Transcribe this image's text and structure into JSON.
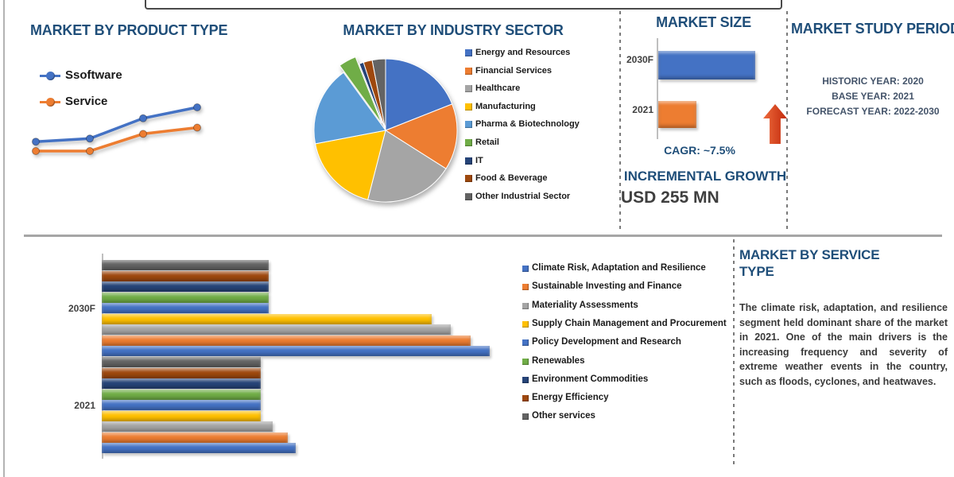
{
  "chart_data": [
    {
      "id": "product_type_line",
      "type": "line",
      "title": "MARKET BY PRODUCT TYPE",
      "x": [
        1,
        2,
        3,
        4
      ],
      "axes_visible": false,
      "legend_position": "top-left",
      "series": [
        {
          "name": "Ssoftware",
          "color": "#4472C4",
          "values": [
            30,
            32,
            45,
            52
          ]
        },
        {
          "name": "Service",
          "color": "#ED7D31",
          "values": [
            24,
            24,
            35,
            39
          ]
        }
      ]
    },
    {
      "id": "industry_sector_pie",
      "type": "pie",
      "title": "MARKET BY INDUSTRY SECTOR",
      "legend_position": "right",
      "labels": [
        "Energy and Resources",
        "Financial Services",
        "Healthcare",
        "Manufacturing",
        "Pharma & Biotechnology",
        "Retail",
        "IT",
        "Food & Beverage",
        "Other Industrial Sector"
      ],
      "values_pct": [
        19,
        15,
        20,
        18,
        18,
        4,
        1,
        2,
        3
      ],
      "colors": [
        "#4472C4",
        "#ED7D31",
        "#A5A5A5",
        "#FFC000",
        "#5B9BD5",
        "#70AD47",
        "#264478",
        "#9E480E",
        "#636363"
      ],
      "exploded_index": 5
    },
    {
      "id": "market_size_bar",
      "type": "bar",
      "orientation": "horizontal",
      "title": "MARKET SIZE",
      "categories": [
        "2030F",
        "2021"
      ],
      "values_relative": [
        100,
        39
      ],
      "colors": [
        "#4472C4",
        "#ED7D31"
      ],
      "annotations": [
        "CAGR: ~7.5%",
        "INCREMENTAL GROWTH",
        "USD 255 MN"
      ],
      "arrow_icon_color": "#C83A17"
    },
    {
      "id": "service_type_bar",
      "type": "bar",
      "orientation": "horizontal",
      "categories": [
        "2030F",
        "2021"
      ],
      "xlim": [
        0,
        107
      ],
      "legend_position": "right",
      "series": [
        {
          "name": "Other services",
          "color": "#636363",
          "values": [
            43,
            41
          ]
        },
        {
          "name": "Energy Efficiency",
          "color": "#9E480E",
          "values": [
            43,
            41
          ]
        },
        {
          "name": "Environment Commodities",
          "color": "#264478",
          "values": [
            43,
            41
          ]
        },
        {
          "name": "Renewables",
          "color": "#70AD47",
          "values": [
            43,
            41
          ]
        },
        {
          "name": "Policy Development and Research",
          "color": "#4472C4",
          "values": [
            43,
            41
          ]
        },
        {
          "name": "Supply Chain Management and Procurement",
          "color": "#FFC000",
          "values": [
            85,
            41
          ]
        },
        {
          "name": "Materiality Assessments",
          "color": "#A5A5A5",
          "values": [
            90,
            44
          ]
        },
        {
          "name": "Sustainable Investing and Finance",
          "color": "#ED7D31",
          "values": [
            95,
            48
          ]
        },
        {
          "name": "Climate Risk, Adaptation and Resilience",
          "color": "#4472C4",
          "values": [
            100,
            50
          ]
        }
      ]
    }
  ],
  "study_period": {
    "title": "MARKET STUDY PERIOD",
    "lines": [
      "HISTORIC YEAR: 2020",
      "BASE YEAR: 2021",
      "FORECAST YEAR: 2022-2030"
    ]
  },
  "service_type_panel": {
    "title": "MARKET BY SERVICE TYPE",
    "body": "The climate risk, adaptation, and resilience segment held dominant share of the market in 2021. One of the main drivers is the increasing frequency and severity of extreme weather events in the country, such as floods, cyclones, and heatwaves."
  },
  "colors": {
    "title_accent": "#1F4E79",
    "divider": "#A6A6A6",
    "dashed_border": "#7A7A7A",
    "label_text": "#404040",
    "study_text": "#44546A"
  }
}
